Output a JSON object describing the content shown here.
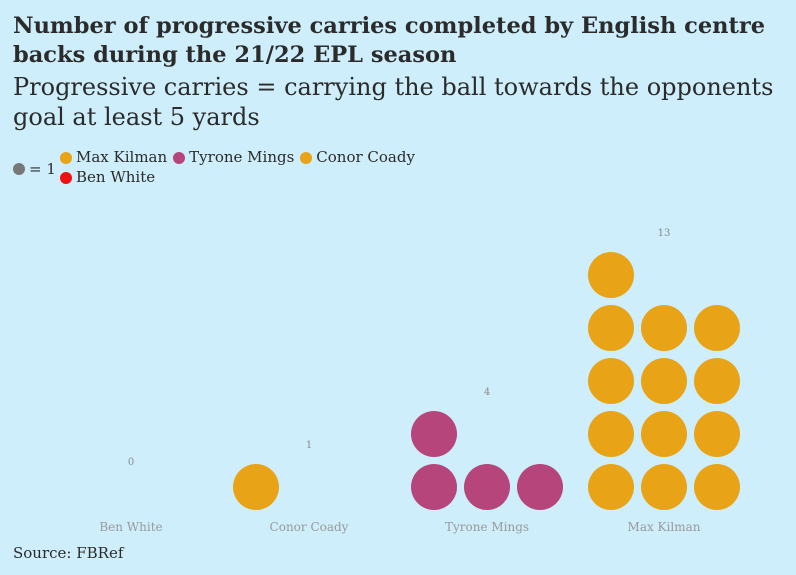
{
  "title": "Number of progressive carries completed by English centre backs during the 21/22 EPL season",
  "subtitle": "Progressive carries = carrying the ball towards the opponents goal at least 5 yards",
  "legend": {
    "unit_label": "= 1",
    "unit_color": "#777777",
    "items": [
      {
        "label": "Max Kilman",
        "color": "#e8a317"
      },
      {
        "label": "Tyrone Mings",
        "color": "#b5457a"
      },
      {
        "label": "Conor Coady",
        "color": "#e8a317"
      },
      {
        "label": "Ben White",
        "color": "#ee1111"
      }
    ]
  },
  "source": "Source: FBRef",
  "chart_data": {
    "type": "waffle",
    "unit": 1,
    "categories": [
      "Ben White",
      "Conor Coady",
      "Tyrone Mings",
      "Max Kilman"
    ],
    "values": [
      0,
      1,
      4,
      13
    ],
    "colors": [
      "#ee1111",
      "#e8a317",
      "#b5457a",
      "#e8a317"
    ],
    "columns_per_category": 3
  }
}
